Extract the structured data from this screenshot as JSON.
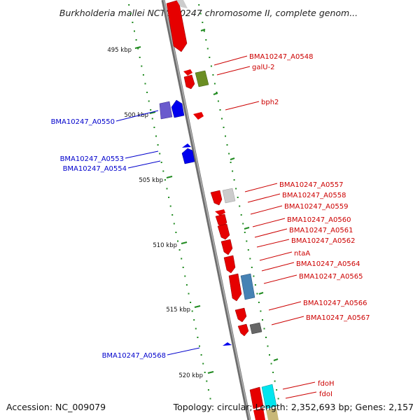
{
  "title": "Burkholderia mallei NCTC 10247 chromosome II, complete genom...",
  "footer": {
    "accession": "Accession: NC_009079",
    "summary": "Topology: circular; Length: 2,352,693 bp; Genes: 2,157"
  },
  "scale_ticks": [
    "495 kbp",
    "500 kbp",
    "505 kbp",
    "510 kbp",
    "515 kbp",
    "520 kbp"
  ],
  "colors": {
    "forward_label": "#cc0000",
    "reverse_label": "#0000cc",
    "backbone": "#8a8a8a",
    "tick_mark": "#1f8a1f"
  },
  "forward_labels": [
    "BMA10247_A0548",
    "galU-2",
    "bph2",
    "BMA10247_A0557",
    "BMA10247_A0558",
    "BMA10247_A0559",
    "BMA10247_A0560",
    "BMA10247_A0561",
    "BMA10247_A0562",
    "ntaA",
    "BMA10247_A0564",
    "BMA10247_A0565",
    "BMA10247_A0566",
    "BMA10247_A0567",
    "fdoH",
    "fdoI"
  ],
  "reverse_labels": [
    "BMA10247_A0550",
    "BMA10247_A0553",
    "BMA10247_A0554",
    "BMA10247_A0568"
  ]
}
